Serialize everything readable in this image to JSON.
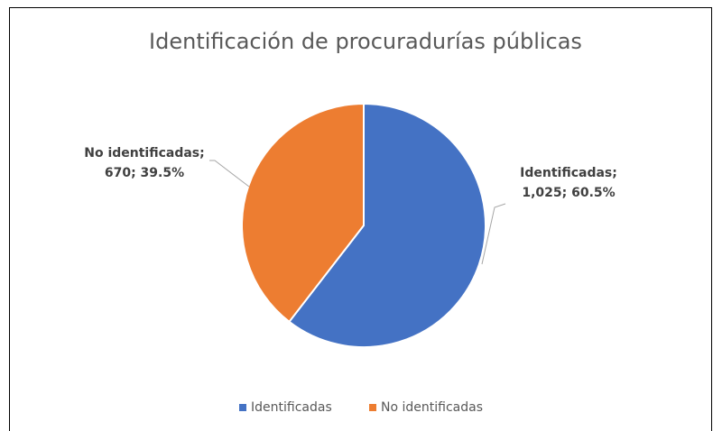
{
  "chart_data": {
    "type": "pie",
    "title": "Identificación de procuradurías públicas",
    "categories": [
      "Identificadas",
      "No identificadas"
    ],
    "values": [
      1025,
      670
    ],
    "value_labels": [
      [
        "Identificadas;",
        "1,025; 60.5%"
      ],
      [
        "No identificadas;",
        "670; 39.5%"
      ]
    ],
    "colors": [
      "#4472c4",
      "#ed7d31"
    ],
    "legend": "bottom"
  }
}
